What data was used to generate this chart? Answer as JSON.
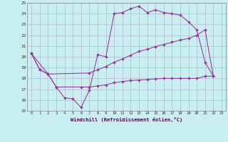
{
  "xlabel": "Windchill (Refroidissement éolien,°C)",
  "bg_color": "#c8eef0",
  "grid_color": "#aaaacc",
  "line_color": "#993399",
  "xlim": [
    -0.5,
    23.5
  ],
  "ylim": [
    15,
    25
  ],
  "line1_x": [
    0,
    1,
    2,
    3,
    4,
    5,
    6,
    7,
    8,
    9,
    10,
    11,
    12,
    13,
    14,
    15,
    16,
    17,
    18,
    19,
    20,
    21,
    22
  ],
  "line1_y": [
    20.3,
    18.8,
    18.4,
    17.2,
    16.2,
    16.1,
    15.3,
    16.9,
    20.2,
    20.0,
    24.0,
    24.1,
    24.45,
    24.7,
    24.1,
    24.35,
    24.1,
    24.0,
    23.85,
    23.25,
    22.5,
    19.5,
    18.2
  ],
  "line2_x": [
    0,
    1,
    2,
    7,
    8,
    9,
    10,
    11,
    12,
    13,
    14,
    15,
    16,
    17,
    18,
    19,
    20,
    21,
    22
  ],
  "line2_y": [
    20.3,
    18.8,
    18.4,
    18.5,
    18.8,
    19.1,
    19.5,
    19.8,
    20.15,
    20.5,
    20.7,
    20.95,
    21.15,
    21.35,
    21.55,
    21.7,
    22.0,
    22.5,
    18.2
  ],
  "line3_x": [
    0,
    2,
    3,
    6,
    7,
    8,
    9,
    10,
    11,
    12,
    13,
    14,
    15,
    16,
    17,
    18,
    19,
    20,
    21,
    22
  ],
  "line3_y": [
    20.3,
    18.4,
    17.2,
    17.2,
    17.2,
    17.3,
    17.4,
    17.6,
    17.7,
    17.8,
    17.85,
    17.9,
    17.95,
    18.0,
    18.0,
    18.0,
    18.0,
    18.0,
    18.2,
    18.2
  ],
  "xtick_fontsize": 4.0,
  "ytick_fontsize": 4.5,
  "xlabel_fontsize": 5.0
}
